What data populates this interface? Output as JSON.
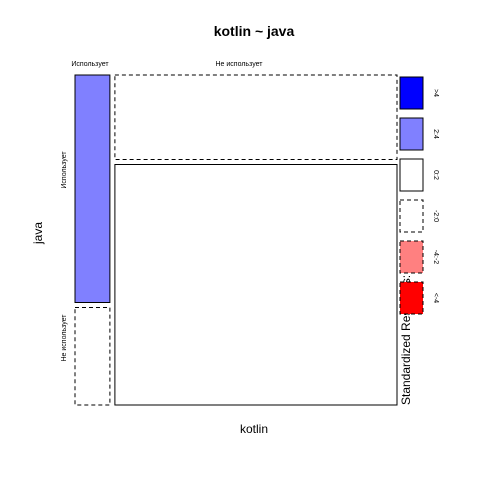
{
  "chart_data": {
    "type": "mosaic",
    "title": "kotlin ~ java",
    "xlabel": "kotlin",
    "ylabel": "java",
    "x_categories": [
      "Использует",
      "Не использует"
    ],
    "y_categories": [
      "Использует",
      "Не использует"
    ],
    "x_proportions": [
      0.11,
      0.89
    ],
    "conditional_y_proportions": [
      [
        0.7,
        0.3
      ],
      [
        0.26,
        0.74
      ]
    ],
    "residual_class": [
      [
        "2:4",
        "-2:0"
      ],
      [
        "-2:0",
        "0:2"
      ]
    ],
    "legend": {
      "title": "Standardized Residuals:",
      "position": "right",
      "entries": [
        {
          "label": ">4",
          "color": "#0000ff",
          "dashed": false
        },
        {
          "label": "2:4",
          "color": "#8080ff",
          "dashed": false
        },
        {
          "label": "0:2",
          "color": "#ffffff",
          "dashed": false
        },
        {
          "label": "-2:0",
          "color": "#ffffff",
          "dashed": true
        },
        {
          "label": "-4:-2",
          "color": "#ff8080",
          "dashed": true
        },
        {
          "label": "<-4",
          "color": "#ff0000",
          "dashed": true
        }
      ]
    }
  }
}
